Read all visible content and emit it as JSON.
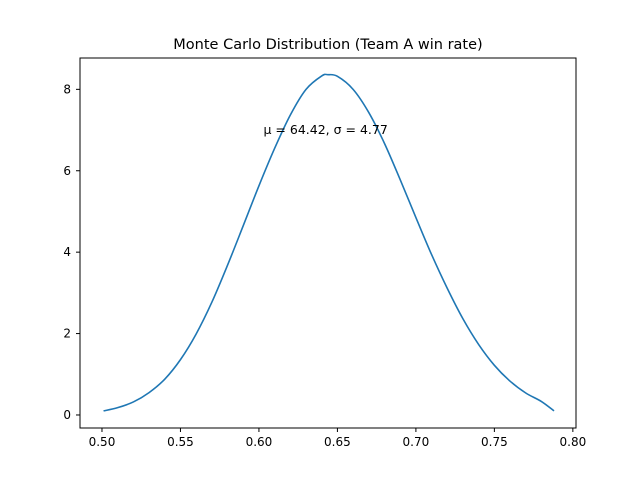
{
  "chart_data": {
    "type": "line",
    "title": "Monte Carlo Distribution (Team A win rate)",
    "xlabel": "",
    "ylabel": "",
    "xlim": [
      0.486,
      0.802
    ],
    "ylim": [
      -0.32,
      8.77
    ],
    "xticks": [
      0.5,
      0.55,
      0.6,
      0.65,
      0.7,
      0.75,
      0.8
    ],
    "xtick_labels": [
      "0.50",
      "0.55",
      "0.60",
      "0.65",
      "0.70",
      "0.75",
      "0.80"
    ],
    "yticks": [
      0,
      2,
      4,
      6,
      8
    ],
    "ytick_labels": [
      "0",
      "2",
      "4",
      "6",
      "8"
    ],
    "grid": false,
    "legend": "none",
    "series": [
      {
        "color": "#1f77b4",
        "x": [
          0.501,
          0.51,
          0.52,
          0.53,
          0.54,
          0.55,
          0.56,
          0.57,
          0.58,
          0.59,
          0.6,
          0.61,
          0.62,
          0.63,
          0.64,
          0.644,
          0.65,
          0.66,
          0.67,
          0.68,
          0.69,
          0.7,
          0.71,
          0.72,
          0.73,
          0.74,
          0.75,
          0.76,
          0.77,
          0.78,
          0.788
        ],
        "y": [
          0.1,
          0.18,
          0.32,
          0.55,
          0.88,
          1.36,
          1.99,
          2.77,
          3.68,
          4.65,
          5.63,
          6.55,
          7.37,
          8.0,
          8.33,
          8.36,
          8.32,
          8.0,
          7.43,
          6.67,
          5.78,
          4.85,
          3.94,
          3.11,
          2.36,
          1.73,
          1.22,
          0.83,
          0.54,
          0.33,
          0.1
        ]
      }
    ],
    "annotations": [
      {
        "text": "μ = 64.42,  σ = 4.77",
        "x": 0.6425,
        "y": 7.0
      }
    ]
  }
}
